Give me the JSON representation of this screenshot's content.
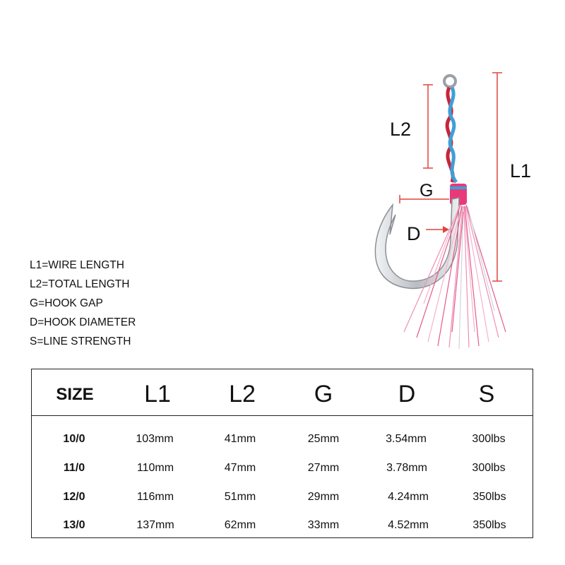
{
  "diagram": {
    "labels": {
      "l1": "L1",
      "l2": "L2",
      "g": "G",
      "d": "D"
    },
    "colors": {
      "dimension_line": "#e0443e",
      "wire_red": "#c8243a",
      "wire_blue": "#3f9fd6",
      "skirt_pink": "#f08fb5",
      "hook_silver": "#c9ccd0"
    }
  },
  "legend": [
    "L1=WIRE LENGTH",
    "L2=TOTAL LENGTH",
    "G=HOOK GAP",
    "D=HOOK DIAMETER",
    "S=LINE STRENGTH"
  ],
  "table": {
    "headers": [
      "SIZE",
      "L1",
      "L2",
      "G",
      "D",
      "S"
    ],
    "rows": [
      [
        "10/0",
        "103mm",
        "41mm",
        "25mm",
        "3.54mm",
        "300lbs"
      ],
      [
        "11/0",
        "110mm",
        "47mm",
        "27mm",
        "3.78mm",
        "300lbs"
      ],
      [
        "12/0",
        "116mm",
        "51mm",
        "29mm",
        "4.24mm",
        "350lbs"
      ],
      [
        "13/0",
        "137mm",
        "62mm",
        "33mm",
        "4.52mm",
        "350lbs"
      ]
    ]
  }
}
